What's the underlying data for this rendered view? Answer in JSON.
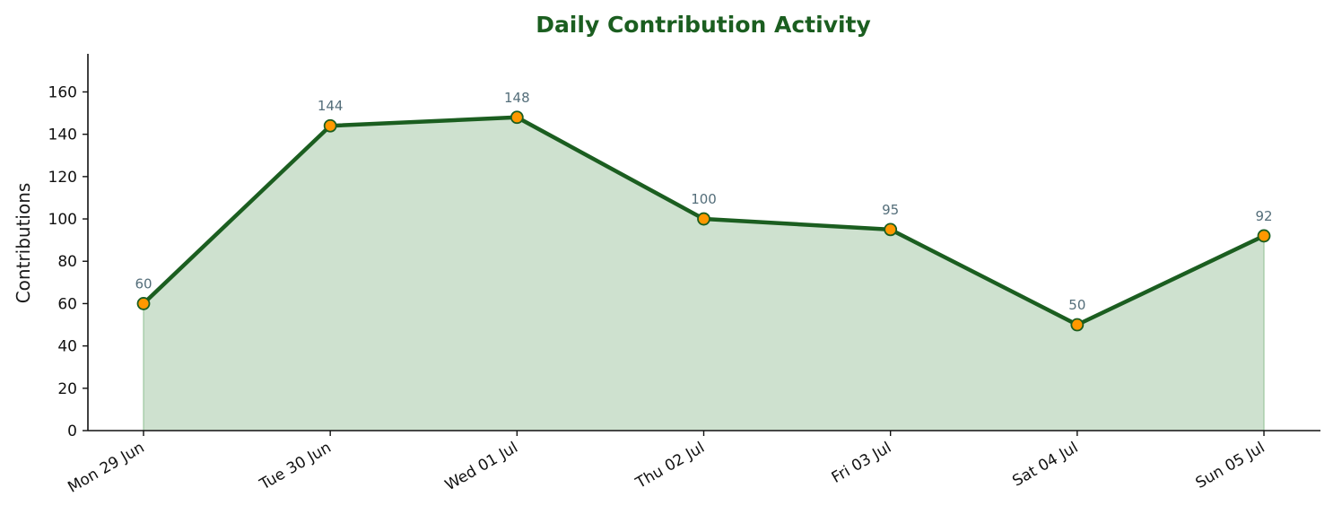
{
  "chart_data": {
    "type": "area",
    "title": "Daily Contribution Activity",
    "xlabel": "",
    "ylabel": "Contributions",
    "categories": [
      "Mon 29 Jun",
      "Tue 30 Jun",
      "Wed 01 Jul",
      "Thu 02 Jul",
      "Fri 03 Jul",
      "Sat 04 Jul",
      "Sun 05 Jul"
    ],
    "values": [
      60,
      144,
      148,
      100,
      95,
      50,
      92
    ],
    "data_labels": [
      "60",
      "144",
      "148",
      "100",
      "95",
      "50",
      "92"
    ],
    "ylim": [
      0,
      178
    ],
    "yticks": [
      0,
      20,
      40,
      60,
      80,
      100,
      120,
      140,
      160
    ],
    "grid": false,
    "legend": "none",
    "colors": {
      "title": "#1b5e20",
      "line": "#1b5e20",
      "fill": "#a5c8a7",
      "fill_opacity": 0.55,
      "marker_fill": "#ff9800",
      "marker_stroke": "#1b5e20",
      "data_label": "#546e7a",
      "axis": "#111111"
    }
  }
}
